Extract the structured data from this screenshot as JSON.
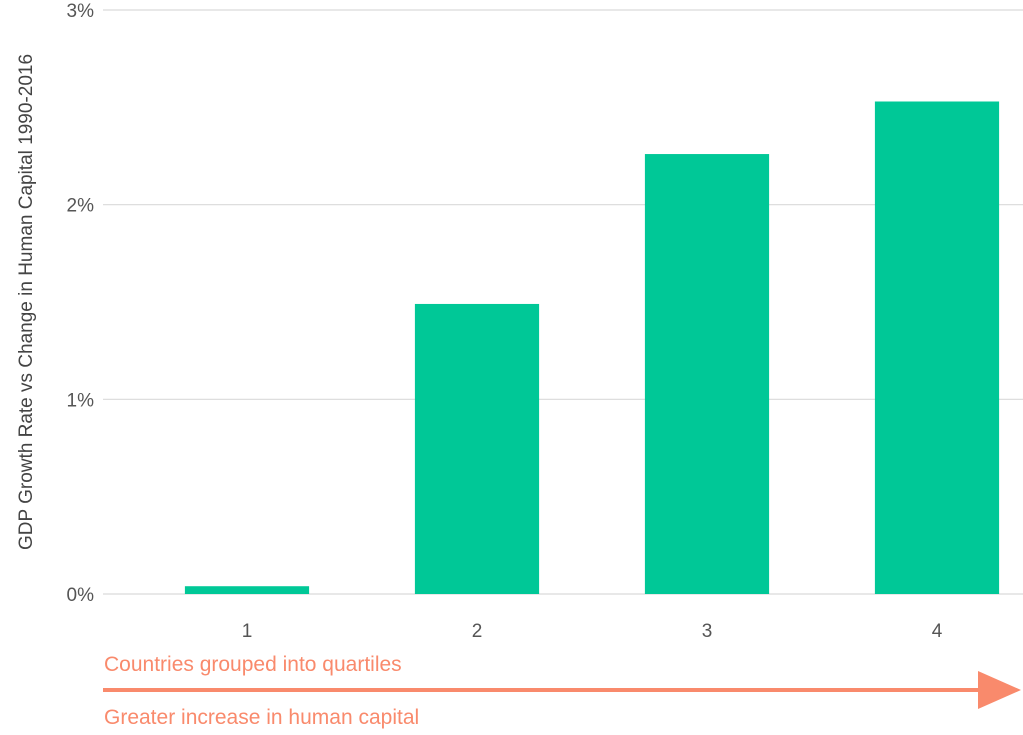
{
  "chart_data": {
    "type": "bar",
    "categories": [
      "1",
      "2",
      "3",
      "4"
    ],
    "values": [
      0.04,
      1.49,
      2.26,
      2.53
    ],
    "ylabel": "GDP Growth Rate vs Change in Human Capital 1990-2016",
    "xlabel": "",
    "ylim": [
      0,
      3
    ],
    "y_ticks": [
      {
        "value": 0,
        "label": "0%"
      },
      {
        "value": 1,
        "label": "1%"
      },
      {
        "value": 2,
        "label": "2%"
      },
      {
        "value": 3,
        "label": "3%"
      }
    ],
    "grid": true,
    "bar_color": "#00c897",
    "annotations": {
      "top": "Countries grouped into quartiles",
      "bottom": "Greater increase in human capital",
      "color": "#f98a6c"
    }
  }
}
